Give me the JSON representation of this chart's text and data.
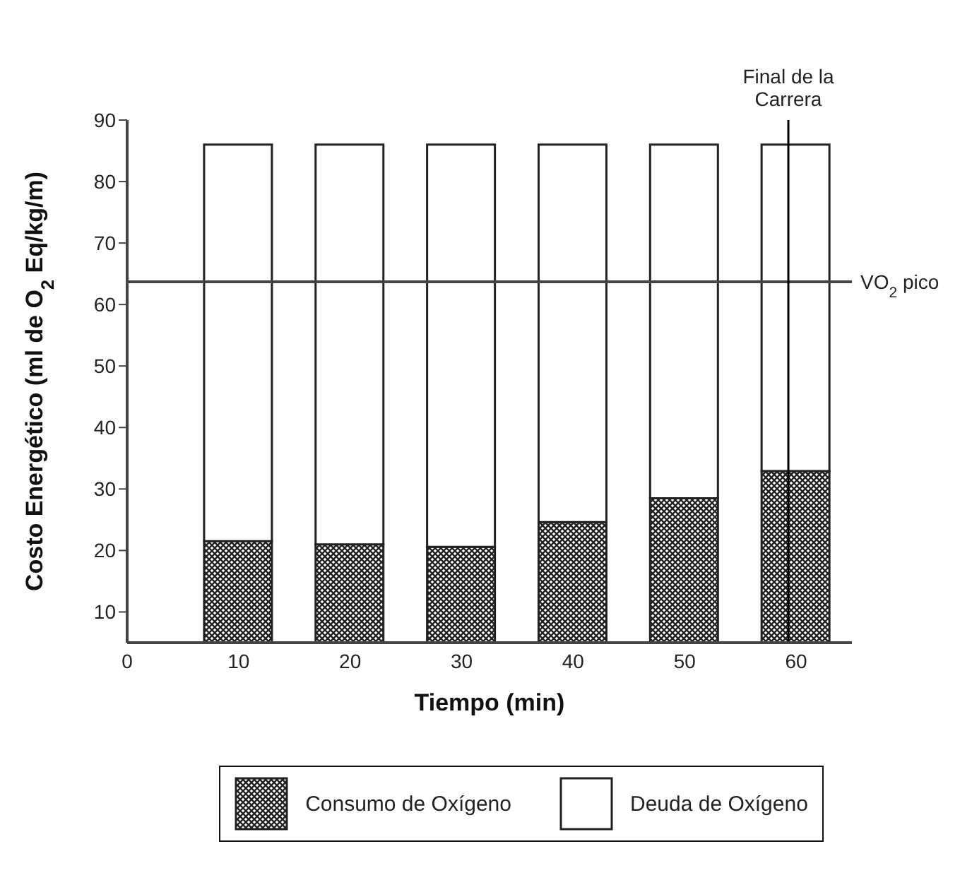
{
  "chart_data": {
    "type": "bar",
    "stacked": true,
    "xlabel": "Tiempo (min)",
    "ylabel": "Costo Energético (ml de O$_{2}$ Eq/kg/m)",
    "x": [
      10,
      20,
      30,
      40,
      50,
      60
    ],
    "series": [
      {
        "name": "Consumo de Oxígeno",
        "color": "#222222",
        "values": [
          21.5,
          21,
          20.6,
          24.6,
          28.5,
          32.9
        ]
      },
      {
        "name": "Deuda de Oxígeno",
        "color": "#ffffff",
        "values": [
          64.5,
          65,
          65.4,
          61.4,
          57.5,
          53.1
        ]
      }
    ],
    "xlim": [
      0,
      65
    ],
    "xticks": [
      0,
      10,
      20,
      30,
      40,
      50,
      60
    ],
    "ylim": [
      5,
      90
    ],
    "yticks": [
      10,
      20,
      30,
      40,
      50,
      60,
      70,
      80,
      90
    ],
    "ref_lines": [
      {
        "axis": "y",
        "value": 63.7,
        "label": "VO$_{2}$ pico",
        "color": "#444444"
      },
      {
        "axis": "x",
        "value": 59.3,
        "label": "Final de la Carrera",
        "color": "#000000"
      }
    ],
    "grid": false,
    "legend": "bottom"
  }
}
